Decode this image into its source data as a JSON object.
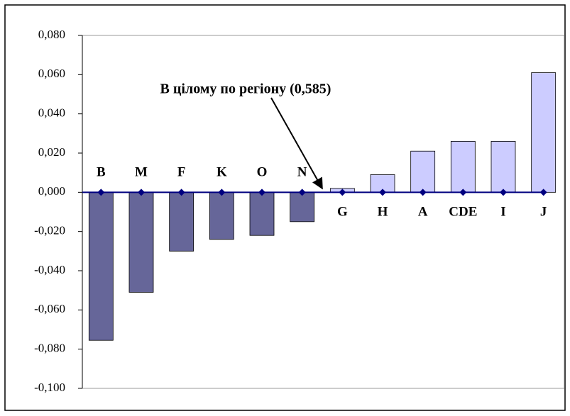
{
  "chart_data": {
    "type": "bar",
    "annotation": "В цілому по регіону  (0,585)",
    "categories": [
      "B",
      "M",
      "F",
      "K",
      "O",
      "N",
      "G",
      "H",
      "A",
      "CDE",
      "I",
      "J"
    ],
    "values": [
      -0.0755,
      -0.051,
      -0.03,
      -0.024,
      -0.022,
      -0.015,
      0.002,
      0.009,
      0.021,
      0.026,
      0.026,
      0.061
    ],
    "negative_color": "#666699",
    "positive_color": "#ccccff",
    "baseline": {
      "color": "#000080",
      "values": [
        0,
        0,
        0,
        0,
        0,
        0,
        0,
        0,
        0,
        0,
        0,
        0
      ]
    },
    "ylim": [
      -0.1,
      0.08
    ],
    "yticks": [
      {
        "value": -0.1,
        "label": "-0,100"
      },
      {
        "value": -0.08,
        "label": "-0,080"
      },
      {
        "value": -0.06,
        "label": "-0,060"
      },
      {
        "value": -0.04,
        "label": "-0,040"
      },
      {
        "value": -0.02,
        "label": "-0,020"
      },
      {
        "value": 0,
        "label": "0,000"
      },
      {
        "value": 0.02,
        "label": "0,020"
      },
      {
        "value": 0.04,
        "label": "0,040"
      },
      {
        "value": 0.06,
        "label": "0,060"
      },
      {
        "value": 0.08,
        "label": "0,080"
      }
    ],
    "grid": false
  }
}
